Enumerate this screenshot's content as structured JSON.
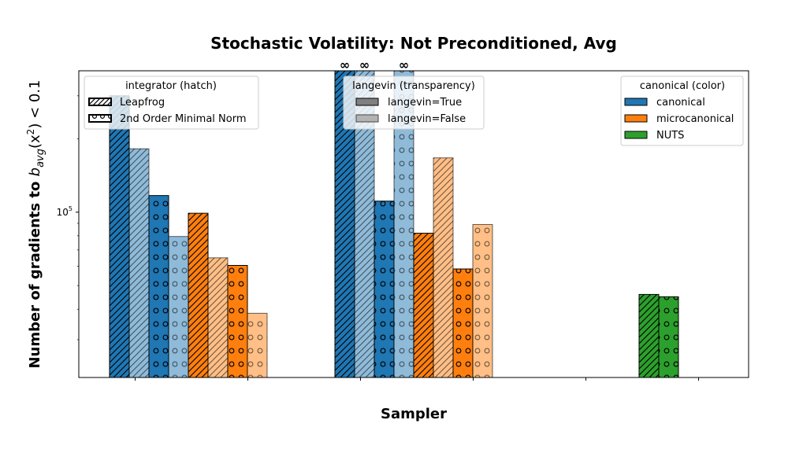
{
  "chart_data": {
    "type": "bar",
    "title": "Stochastic Volatility: Not Preconditioned, Avg",
    "xlabel": "Sampler",
    "ylabel_prefix": "Number of gradients to ",
    "ylabel_math": "b",
    "ylabel_sub": "avg",
    "ylabel_paren": "(x",
    "ylabel_sup": "2",
    "ylabel_suffix": ") < 0.1",
    "yscale": "log",
    "ylim": [
      21000,
      380000
    ],
    "yticks": [
      {
        "value": 100000,
        "label_base": "10",
        "label_exp": "5"
      }
    ],
    "grid": false,
    "colors": {
      "canonical": "#1f77b4",
      "microcanonical": "#ff7f0e",
      "NUTS": "#2ca02c"
    },
    "infinity_symbol": "∞",
    "bars": [
      {
        "group": 0,
        "sampler": "canonical",
        "langevin": true,
        "integrator": "Leapfrog",
        "value": 300000,
        "inf": false
      },
      {
        "group": 0,
        "sampler": "canonical",
        "langevin": false,
        "integrator": "Leapfrog",
        "value": 182000,
        "inf": false
      },
      {
        "group": 0,
        "sampler": "canonical",
        "langevin": true,
        "integrator": "2nd Order Minimal Norm",
        "value": 117000,
        "inf": false
      },
      {
        "group": 0,
        "sampler": "canonical",
        "langevin": false,
        "integrator": "2nd Order Minimal Norm",
        "value": 79500,
        "inf": false
      },
      {
        "group": 0,
        "sampler": "microcanonical",
        "langevin": true,
        "integrator": "Leapfrog",
        "value": 99000,
        "inf": false
      },
      {
        "group": 0,
        "sampler": "microcanonical",
        "langevin": false,
        "integrator": "Leapfrog",
        "value": 65000,
        "inf": false
      },
      {
        "group": 0,
        "sampler": "microcanonical",
        "langevin": true,
        "integrator": "2nd Order Minimal Norm",
        "value": 60500,
        "inf": false
      },
      {
        "group": 0,
        "sampler": "microcanonical",
        "langevin": false,
        "integrator": "2nd Order Minimal Norm",
        "value": 38500,
        "inf": false
      },
      {
        "group": 1,
        "sampler": "canonical",
        "langevin": true,
        "integrator": "Leapfrog",
        "value": null,
        "inf": true
      },
      {
        "group": 1,
        "sampler": "canonical",
        "langevin": false,
        "integrator": "Leapfrog",
        "value": null,
        "inf": true
      },
      {
        "group": 1,
        "sampler": "canonical",
        "langevin": true,
        "integrator": "2nd Order Minimal Norm",
        "value": 111000,
        "inf": false
      },
      {
        "group": 1,
        "sampler": "canonical",
        "langevin": false,
        "integrator": "2nd Order Minimal Norm",
        "value": null,
        "inf": true
      },
      {
        "group": 1,
        "sampler": "microcanonical",
        "langevin": true,
        "integrator": "Leapfrog",
        "value": 82000,
        "inf": false
      },
      {
        "group": 1,
        "sampler": "microcanonical",
        "langevin": false,
        "integrator": "Leapfrog",
        "value": 167000,
        "inf": false
      },
      {
        "group": 1,
        "sampler": "microcanonical",
        "langevin": true,
        "integrator": "2nd Order Minimal Norm",
        "value": 58500,
        "inf": false
      },
      {
        "group": 1,
        "sampler": "microcanonical",
        "langevin": false,
        "integrator": "2nd Order Minimal Norm",
        "value": 89000,
        "inf": false
      },
      {
        "group": 2,
        "sampler": "NUTS",
        "langevin": true,
        "integrator": "Leapfrog",
        "value": 46000,
        "inf": false
      },
      {
        "group": 2,
        "sampler": "NUTS",
        "langevin": true,
        "integrator": "2nd Order Minimal Norm",
        "value": 45000,
        "inf": false
      }
    ],
    "legends": {
      "integrator": {
        "title": "integrator (hatch)",
        "placement": "top-left",
        "entries": [
          "Leapfrog",
          "2nd Order Minimal Norm"
        ]
      },
      "langevin": {
        "title": "langevin (transparency)",
        "placement": "top-center",
        "entries": [
          "langevin=True",
          "langevin=False"
        ]
      },
      "canonical": {
        "title": "canonical (color)",
        "placement": "top-right",
        "entries": [
          "canonical",
          "microcanonical",
          "NUTS"
        ]
      }
    }
  }
}
